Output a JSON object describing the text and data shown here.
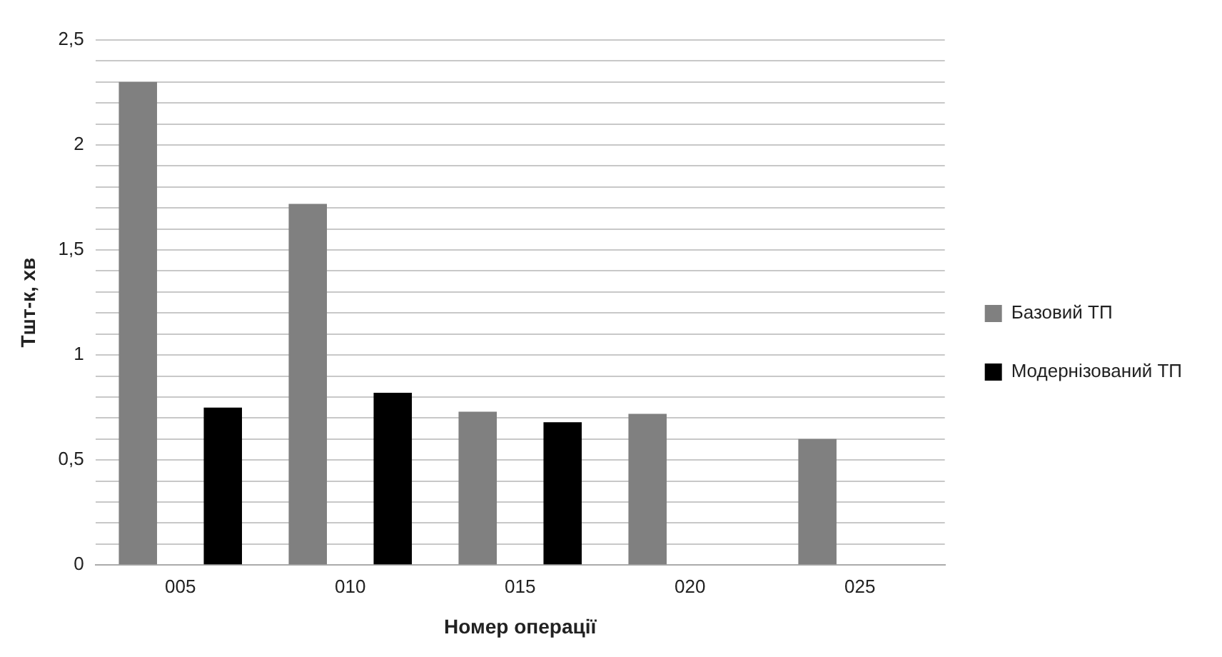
{
  "chart_data": {
    "type": "bar",
    "xlabel": "Номер операції",
    "ylabel": "Тшт-к, хв",
    "categories": [
      "005",
      "010",
      "015",
      "020",
      "025"
    ],
    "series": [
      {
        "name": "Базовий ТП",
        "color": "#808080",
        "values": [
          2.3,
          1.72,
          0.73,
          0.72,
          0.6
        ]
      },
      {
        "name": "Модернізований ТП",
        "color": "#000000",
        "values": [
          0.75,
          0.82,
          0.68,
          null,
          null
        ]
      }
    ],
    "ylim": [
      0,
      2.5
    ],
    "yticks": [
      0,
      {
        "value": 0.1,
        "label": null
      },
      {
        "value": 0.2,
        "label": null
      },
      {
        "value": 0.3,
        "label": null
      },
      {
        "value": 0.4,
        "label": null
      },
      {
        "value": 0.5,
        "label": "0,5"
      },
      {
        "value": 0.6,
        "label": null
      },
      {
        "value": 0.7,
        "label": null
      },
      {
        "value": 0.8,
        "label": null
      },
      {
        "value": 0.9,
        "label": null
      },
      1,
      {
        "value": 1.1,
        "label": null
      },
      {
        "value": 1.2,
        "label": null
      },
      {
        "value": 1.3,
        "label": null
      },
      {
        "value": 1.4,
        "label": null
      },
      {
        "value": 1.5,
        "label": "1,5"
      },
      {
        "value": 1.6,
        "label": null
      },
      {
        "value": 1.7,
        "label": null
      },
      {
        "value": 1.8,
        "label": null
      },
      {
        "value": 1.9,
        "label": null
      },
      2,
      {
        "value": 2.1,
        "label": null
      },
      {
        "value": 2.2,
        "label": null
      },
      {
        "value": 2.3,
        "label": null
      },
      {
        "value": 2.4,
        "label": null
      },
      {
        "value": 2.5,
        "label": "2,5"
      }
    ],
    "grid": "y",
    "legend": "right"
  }
}
